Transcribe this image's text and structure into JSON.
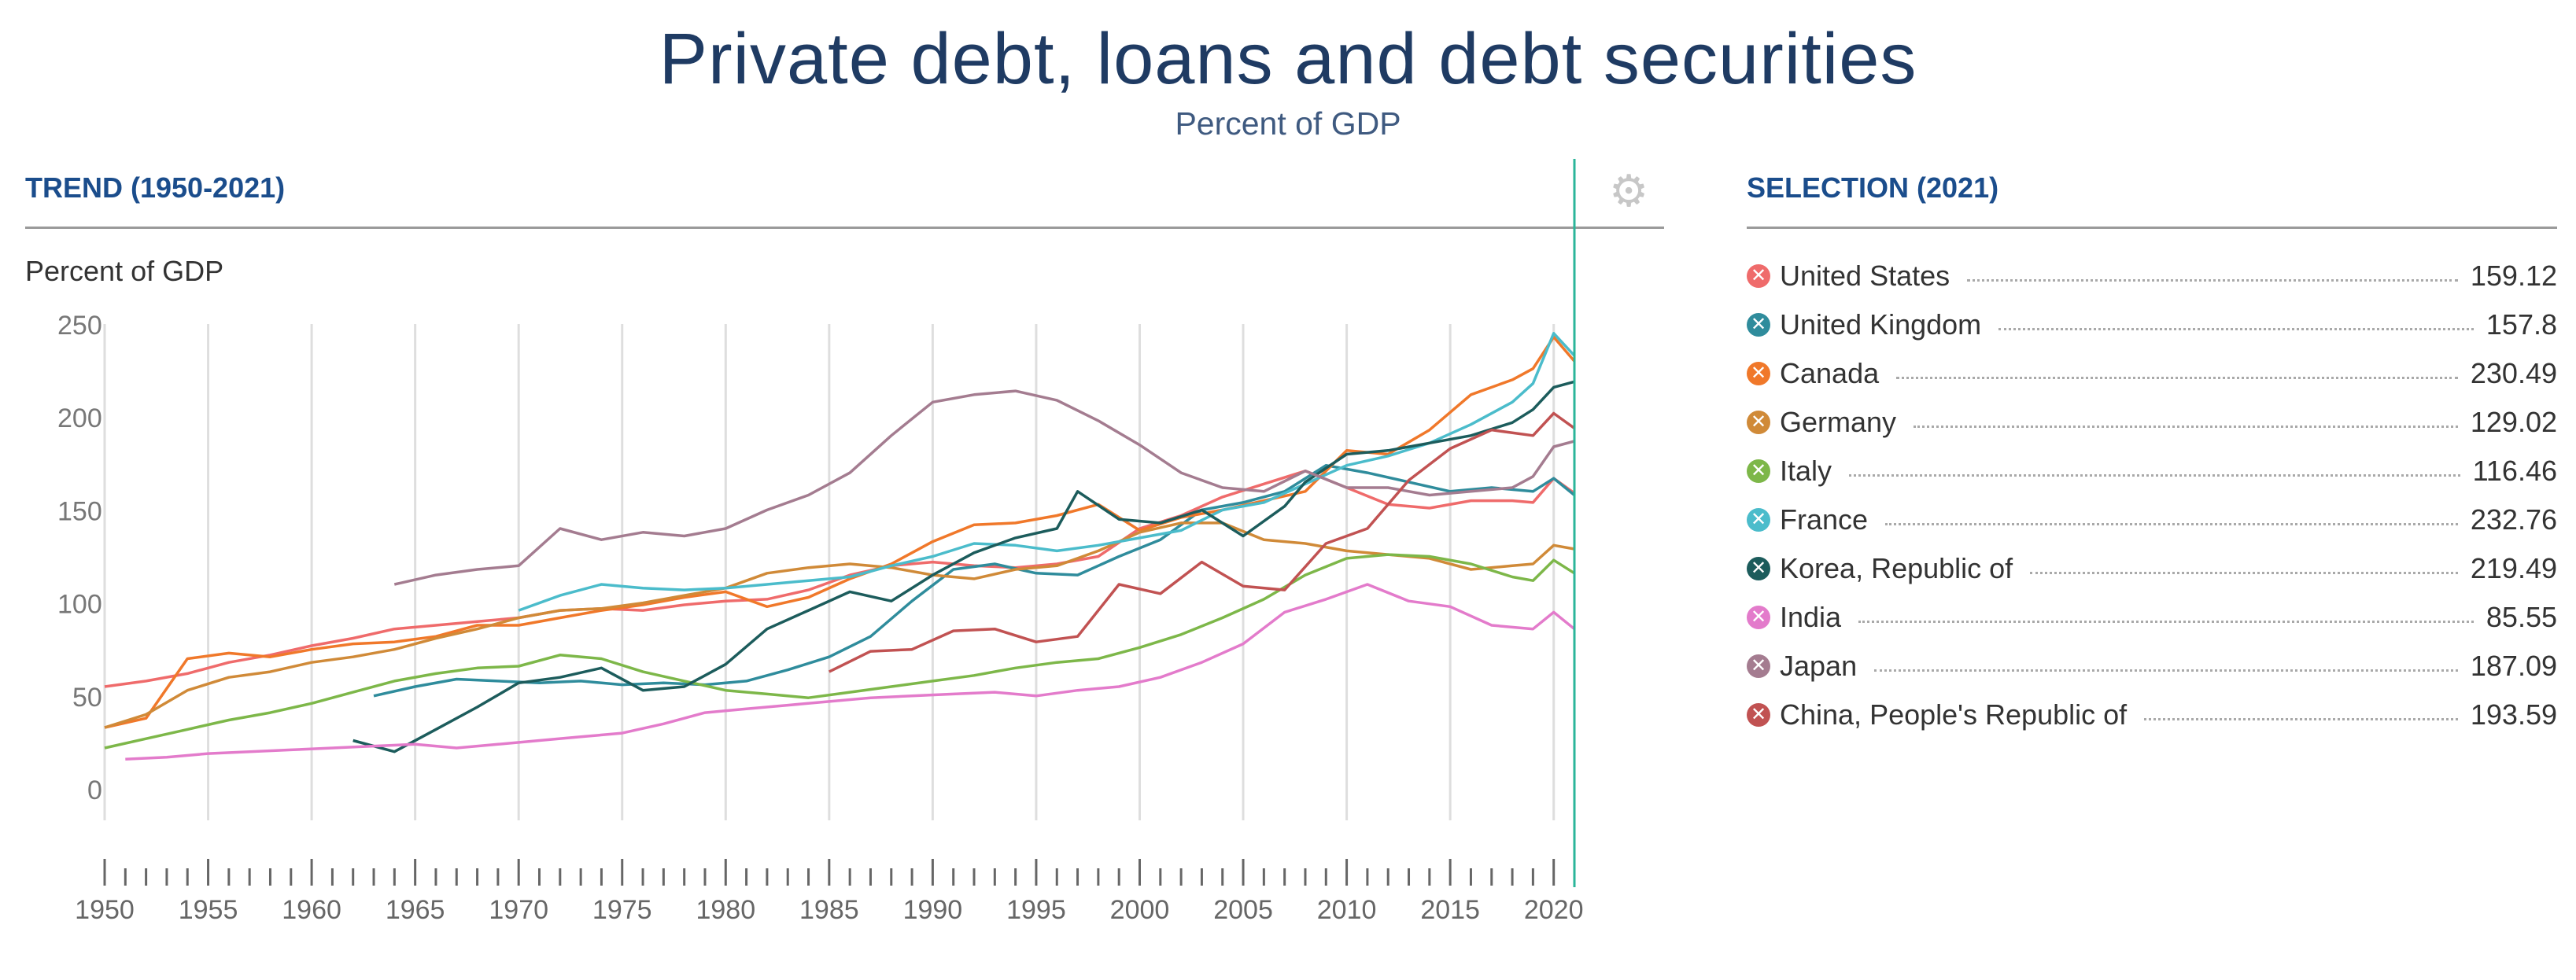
{
  "header": {
    "title": "Private debt, loans and debt securities",
    "subtitle": "Percent of GDP"
  },
  "trend": {
    "heading": "TREND (1950-2021)",
    "settings_icon": "gears-icon"
  },
  "selection": {
    "heading": "SELECTION (2021)"
  },
  "colors": {
    "heading": "#1b4d8c",
    "title": "#1f3b63",
    "marker_line": "#2bb59a",
    "grid": "#dedede"
  },
  "chart_data": {
    "type": "line",
    "ylabel": "Percent of GDP",
    "xlim": [
      1950,
      2021
    ],
    "ylim": [
      0,
      250
    ],
    "yticks": [
      0,
      50,
      100,
      150,
      200,
      250
    ],
    "xticks": [
      1950,
      1955,
      1960,
      1965,
      1970,
      1975,
      1980,
      1985,
      1990,
      1995,
      2000,
      2005,
      2010,
      2015,
      2020
    ],
    "grid": true,
    "legend_position": "right",
    "marker_year": 2021,
    "series": [
      {
        "name": "United States",
        "color": "#ef6b6b",
        "value_2021": "159.12",
        "x": [
          1950,
          1952,
          1954,
          1956,
          1958,
          1960,
          1962,
          1964,
          1966,
          1968,
          1970,
          1972,
          1974,
          1976,
          1978,
          1980,
          1982,
          1984,
          1986,
          1988,
          1990,
          1992,
          1994,
          1996,
          1998,
          2000,
          2002,
          2004,
          2006,
          2008,
          2010,
          2012,
          2014,
          2016,
          2018,
          2019,
          2020,
          2021
        ],
        "y": [
          55,
          58,
          62,
          68,
          72,
          77,
          81,
          86,
          88,
          90,
          92,
          96,
          97,
          96,
          99,
          101,
          102,
          107,
          115,
          120,
          122,
          120,
          119,
          121,
          125,
          140,
          147,
          157,
          164,
          171,
          162,
          153,
          151,
          155,
          155,
          154,
          167,
          159
        ]
      },
      {
        "name": "United Kingdom",
        "color": "#2f8c9c",
        "value_2021": "157.8",
        "x": [
          1963,
          1965,
          1967,
          1969,
          1971,
          1973,
          1975,
          1977,
          1979,
          1981,
          1983,
          1985,
          1987,
          1989,
          1991,
          1993,
          1995,
          1997,
          1999,
          2001,
          2003,
          2005,
          2007,
          2009,
          2011,
          2013,
          2015,
          2017,
          2019,
          2020,
          2021
        ],
        "y": [
          50,
          55,
          59,
          58,
          57,
          58,
          56,
          57,
          56,
          58,
          64,
          71,
          82,
          101,
          118,
          121,
          116,
          115,
          125,
          134,
          150,
          154,
          160,
          174,
          170,
          165,
          160,
          162,
          160,
          167,
          158
        ]
      },
      {
        "name": "Canada",
        "color": "#f0782a",
        "value_2021": "230.49",
        "x": [
          1950,
          1952,
          1954,
          1956,
          1958,
          1960,
          1962,
          1964,
          1966,
          1968,
          1970,
          1972,
          1974,
          1976,
          1978,
          1980,
          1982,
          1984,
          1986,
          1988,
          1990,
          1992,
          1994,
          1996,
          1998,
          2000,
          2002,
          2004,
          2006,
          2008,
          2010,
          2012,
          2014,
          2016,
          2018,
          2019,
          2020,
          2021
        ],
        "y": [
          33,
          38,
          70,
          73,
          71,
          75,
          78,
          79,
          82,
          88,
          88,
          92,
          96,
          99,
          103,
          106,
          98,
          103,
          113,
          121,
          133,
          142,
          143,
          147,
          153,
          139,
          146,
          150,
          155,
          160,
          182,
          180,
          193,
          212,
          220,
          226,
          243,
          230
        ]
      },
      {
        "name": "Germany",
        "color": "#d08a38",
        "value_2021": "129.02",
        "x": [
          1950,
          1952,
          1954,
          1956,
          1958,
          1960,
          1962,
          1964,
          1966,
          1968,
          1970,
          1972,
          1974,
          1976,
          1978,
          1980,
          1982,
          1984,
          1986,
          1988,
          1990,
          1992,
          1994,
          1996,
          1998,
          2000,
          2002,
          2004,
          2006,
          2008,
          2010,
          2012,
          2014,
          2016,
          2018,
          2019,
          2020,
          2021
        ],
        "y": [
          33,
          40,
          53,
          60,
          63,
          68,
          71,
          75,
          81,
          86,
          92,
          96,
          97,
          100,
          104,
          108,
          116,
          119,
          121,
          119,
          115,
          113,
          118,
          120,
          128,
          138,
          143,
          143,
          134,
          132,
          128,
          126,
          124,
          118,
          120,
          121,
          131,
          129
        ]
      },
      {
        "name": "Italy",
        "color": "#7db749",
        "value_2021": "116.46",
        "x": [
          1950,
          1952,
          1954,
          1956,
          1958,
          1960,
          1962,
          1964,
          1966,
          1968,
          1970,
          1972,
          1974,
          1976,
          1978,
          1980,
          1982,
          1984,
          1986,
          1988,
          1990,
          1992,
          1994,
          1996,
          1998,
          2000,
          2002,
          2004,
          2006,
          2008,
          2010,
          2012,
          2014,
          2016,
          2018,
          2019,
          2020,
          2021
        ],
        "y": [
          22,
          27,
          32,
          37,
          41,
          46,
          52,
          58,
          62,
          65,
          66,
          72,
          70,
          63,
          58,
          53,
          51,
          49,
          52,
          55,
          58,
          61,
          65,
          68,
          70,
          76,
          83,
          92,
          102,
          115,
          124,
          126,
          125,
          121,
          114,
          112,
          123,
          116
        ]
      },
      {
        "name": "France",
        "color": "#4bbccb",
        "value_2021": "232.76",
        "x": [
          1970,
          1972,
          1974,
          1976,
          1978,
          1980,
          1982,
          1984,
          1986,
          1988,
          1990,
          1992,
          1994,
          1996,
          1998,
          2000,
          2002,
          2004,
          2006,
          2008,
          2010,
          2012,
          2014,
          2016,
          2018,
          2019,
          2020,
          2021
        ],
        "y": [
          96,
          104,
          110,
          108,
          107,
          108,
          110,
          112,
          114,
          120,
          125,
          132,
          131,
          128,
          131,
          135,
          139,
          150,
          154,
          164,
          174,
          179,
          186,
          196,
          208,
          218,
          245,
          233
        ]
      },
      {
        "name": "Korea, Republic of",
        "color": "#1c5c5c",
        "value_2021": "219.49",
        "x": [
          1962,
          1964,
          1966,
          1968,
          1970,
          1972,
          1974,
          1976,
          1978,
          1980,
          1982,
          1984,
          1986,
          1988,
          1990,
          1992,
          1994,
          1996,
          1997,
          1999,
          2001,
          2003,
          2005,
          2007,
          2008,
          2010,
          2012,
          2014,
          2016,
          2018,
          2019,
          2020,
          2021
        ],
        "y": [
          26,
          20,
          32,
          44,
          57,
          60,
          65,
          53,
          55,
          67,
          86,
          96,
          106,
          101,
          115,
          127,
          135,
          140,
          160,
          145,
          143,
          150,
          136,
          152,
          165,
          180,
          182,
          186,
          190,
          197,
          204,
          216,
          219
        ]
      },
      {
        "name": "India",
        "color": "#e37bcb",
        "value_2021": "85.55",
        "x": [
          1951,
          1953,
          1955,
          1957,
          1959,
          1961,
          1963,
          1965,
          1967,
          1969,
          1971,
          1973,
          1975,
          1977,
          1979,
          1981,
          1983,
          1985,
          1987,
          1989,
          1991,
          1993,
          1995,
          1997,
          1999,
          2001,
          2003,
          2005,
          2007,
          2009,
          2011,
          2013,
          2015,
          2017,
          2019,
          2020,
          2021
        ],
        "y": [
          16,
          17,
          19,
          20,
          21,
          22,
          23,
          24,
          22,
          24,
          26,
          28,
          30,
          35,
          41,
          43,
          45,
          47,
          49,
          50,
          51,
          52,
          50,
          53,
          55,
          60,
          68,
          78,
          95,
          102,
          110,
          101,
          98,
          88,
          86,
          95,
          86
        ]
      },
      {
        "name": "Japan",
        "color": "#a47c90",
        "value_2021": "187.09",
        "x": [
          1964,
          1966,
          1968,
          1970,
          1972,
          1974,
          1976,
          1978,
          1980,
          1982,
          1984,
          1986,
          1988,
          1990,
          1992,
          1994,
          1996,
          1998,
          2000,
          2002,
          2004,
          2006,
          2008,
          2010,
          2012,
          2014,
          2016,
          2018,
          2019,
          2020,
          2021
        ],
        "y": [
          110,
          115,
          118,
          120,
          140,
          134,
          138,
          136,
          140,
          150,
          158,
          170,
          190,
          208,
          212,
          214,
          209,
          198,
          185,
          170,
          162,
          160,
          171,
          162,
          162,
          158,
          160,
          162,
          168,
          184,
          187
        ]
      },
      {
        "name": "China, People's Republic of",
        "color": "#c15252",
        "value_2021": "193.59",
        "x": [
          1985,
          1987,
          1989,
          1991,
          1993,
          1995,
          1997,
          1999,
          2001,
          2003,
          2005,
          2007,
          2009,
          2011,
          2013,
          2015,
          2017,
          2019,
          2020,
          2021
        ],
        "y": [
          63,
          74,
          75,
          85,
          86,
          79,
          82,
          110,
          105,
          122,
          109,
          107,
          132,
          140,
          166,
          183,
          193,
          190,
          202,
          194
        ]
      }
    ]
  }
}
